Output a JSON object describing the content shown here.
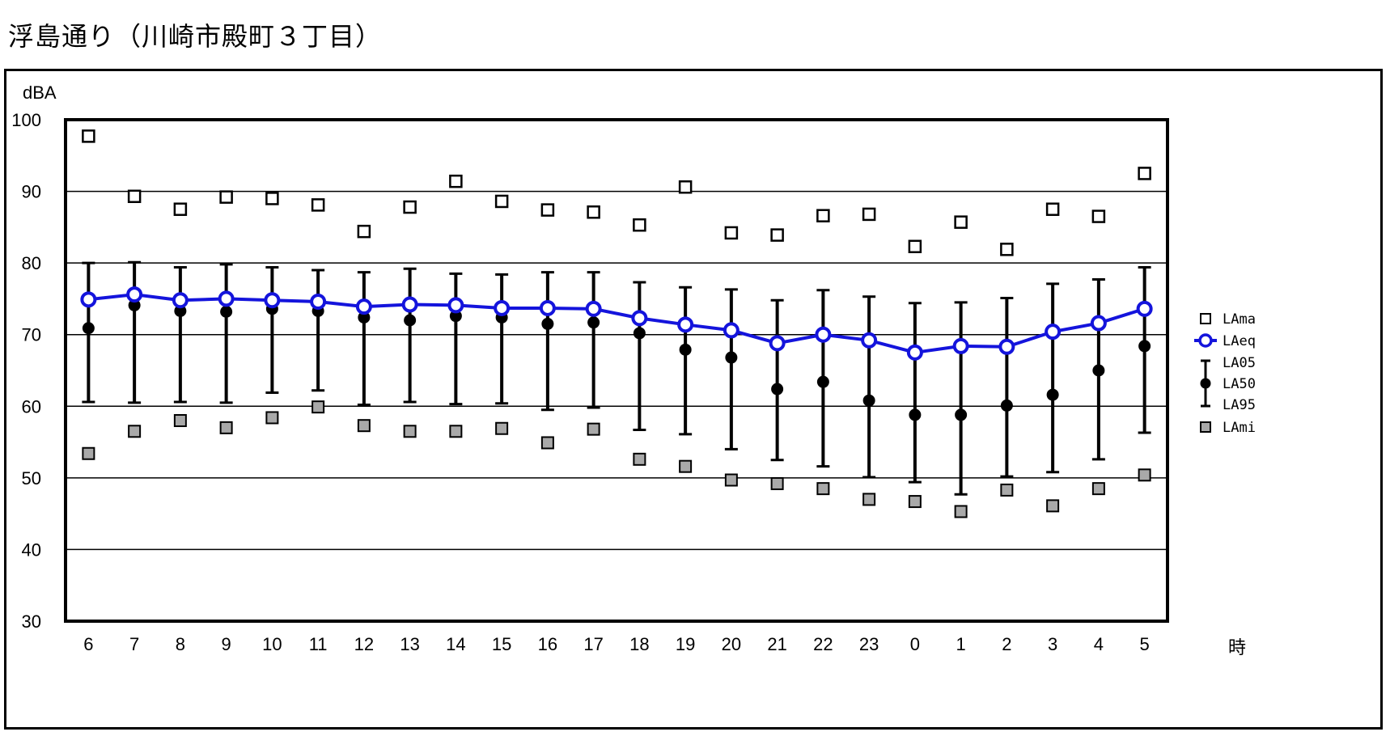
{
  "title": "浮島通り（川崎市殿町３丁目）",
  "chart_data": {
    "type": "line",
    "title": "浮島通り（川崎市殿町３丁目）",
    "ylabel": "dBA",
    "xlabel": "時",
    "ylim": [
      30,
      100
    ],
    "yticks": [
      30,
      40,
      50,
      60,
      70,
      80,
      90,
      100
    ],
    "grid": true,
    "legend_placement": "right",
    "categories": [
      "6",
      "7",
      "8",
      "9",
      "10",
      "11",
      "12",
      "13",
      "14",
      "15",
      "16",
      "17",
      "18",
      "19",
      "20",
      "21",
      "22",
      "23",
      "0",
      "1",
      "2",
      "3",
      "4",
      "5"
    ],
    "series": [
      {
        "name": "LAma",
        "marker": "open-square",
        "color": "#000000",
        "values": [
          97.7,
          89.3,
          87.5,
          89.2,
          89.0,
          88.1,
          84.4,
          87.8,
          91.4,
          88.6,
          87.4,
          87.1,
          85.3,
          90.6,
          84.2,
          83.9,
          86.6,
          86.8,
          82.3,
          85.7,
          81.9,
          87.5,
          86.5,
          92.5
        ]
      },
      {
        "name": "LAeq",
        "marker": "open-circle-line",
        "color": "#1414dc",
        "values": [
          74.9,
          75.6,
          74.8,
          75.0,
          74.8,
          74.6,
          73.9,
          74.2,
          74.1,
          73.7,
          73.7,
          73.6,
          72.3,
          71.4,
          70.6,
          68.8,
          70.0,
          69.2,
          67.5,
          68.4,
          68.3,
          70.4,
          71.6,
          73.6
        ]
      },
      {
        "name": "LA05",
        "marker": "error-bar-top",
        "color": "#000000",
        "values": [
          80.0,
          80.1,
          79.4,
          79.8,
          79.4,
          79.0,
          78.7,
          79.2,
          78.5,
          78.4,
          78.7,
          78.7,
          77.3,
          76.6,
          76.3,
          74.8,
          76.2,
          75.3,
          74.4,
          74.5,
          75.1,
          77.1,
          77.7,
          79.4
        ]
      },
      {
        "name": "LA50",
        "marker": "filled-circle",
        "color": "#000000",
        "values": [
          70.9,
          74.1,
          73.3,
          73.2,
          73.6,
          73.3,
          72.4,
          72.0,
          72.6,
          72.4,
          71.5,
          71.7,
          70.2,
          67.9,
          66.8,
          62.4,
          63.4,
          60.8,
          58.8,
          58.8,
          60.1,
          61.6,
          65.0,
          68.4
        ]
      },
      {
        "name": "LA95",
        "marker": "error-bar-bottom",
        "color": "#000000",
        "values": [
          60.6,
          60.5,
          60.6,
          60.5,
          61.9,
          62.2,
          60.2,
          60.6,
          60.3,
          60.4,
          59.5,
          59.8,
          56.7,
          56.1,
          54.0,
          52.5,
          51.6,
          50.1,
          49.4,
          47.7,
          50.2,
          50.8,
          52.6,
          56.3
        ]
      },
      {
        "name": "LAmi",
        "marker": "gray-square",
        "color": "#a9a9a9",
        "values": [
          53.4,
          56.5,
          58.0,
          57.0,
          58.4,
          59.9,
          57.3,
          56.5,
          56.5,
          56.9,
          54.9,
          56.8,
          52.6,
          51.6,
          49.7,
          49.2,
          48.5,
          47.0,
          46.7,
          45.3,
          48.3,
          46.1,
          48.5,
          50.4
        ]
      }
    ]
  }
}
